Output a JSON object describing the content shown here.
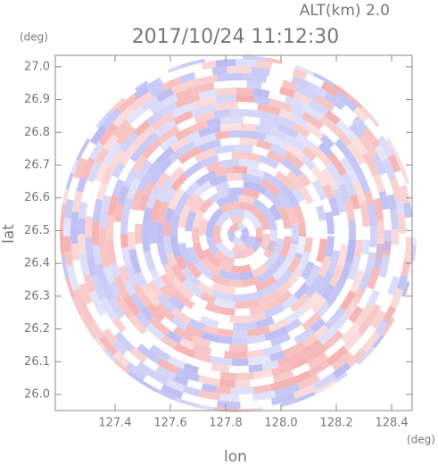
{
  "chart_data": {
    "type": "radar-ppi",
    "title": "2017/10/24 11:12:30",
    "altitude_label": "ALT(km) 2.0",
    "xlabel": "lon",
    "ylabel": "lat",
    "xunit": "(deg)",
    "yunit": "(deg)",
    "xlim": [
      127.184,
      128.474
    ],
    "ylim": [
      25.951,
      27.035
    ],
    "xticks": [
      127.4,
      127.6,
      127.8,
      {
        "value": 128.0,
        "label": "128.0"
      },
      128.2,
      128.4
    ],
    "yticks": [
      {
        "value": 26.0,
        "label": "26.0"
      },
      26.1,
      26.2,
      26.3,
      26.4,
      26.5,
      26.6,
      26.7,
      26.8,
      26.9,
      {
        "value": 27.0,
        "label": "27.0"
      }
    ]
  }
}
